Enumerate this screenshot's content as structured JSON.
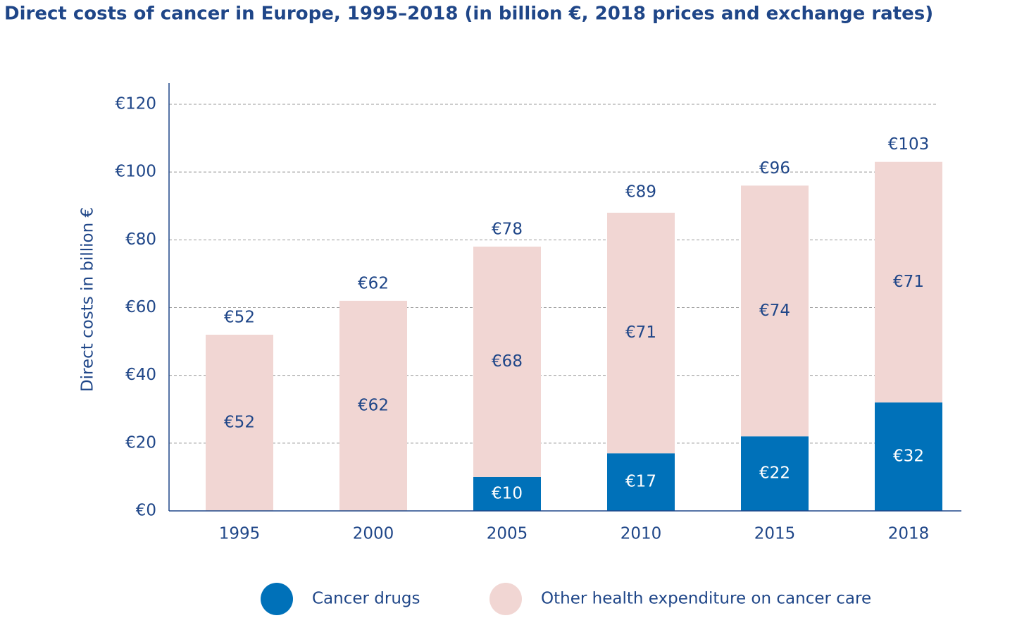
{
  "chart_data": {
    "type": "stacked-bar",
    "title": "Direct costs of cancer in Europe, 1995–2018 (in billion €, 2018 prices and exchange rates)",
    "y_label": "Direct costs in billion €",
    "categories": [
      "1995",
      "2000",
      "2005",
      "2010",
      "2015",
      "2018"
    ],
    "series": [
      {
        "name": "Cancer drugs",
        "color": "#0071b9",
        "label_color": "#ffffff",
        "values": [
          null,
          null,
          10,
          17,
          22,
          32
        ],
        "value_labels": [
          null,
          null,
          "€10",
          "€17",
          "€22",
          "€32"
        ]
      },
      {
        "name": "Other health expenditure on cancer care",
        "color": "#f1d6d3",
        "label_color": "#1f4688",
        "values": [
          52,
          62,
          68,
          71,
          74,
          71
        ],
        "value_labels": [
          "€52",
          "€62",
          "€68",
          "€71",
          "€74",
          "€71"
        ]
      }
    ],
    "totals": [
      52,
      62,
      78,
      89,
      96,
      103
    ],
    "total_labels": [
      "€52",
      "€62",
      "€78",
      "€89",
      "€96",
      "€103"
    ],
    "ylim": [
      0,
      120
    ],
    "yticks": [
      {
        "value": 0,
        "label": "€0"
      },
      {
        "value": 20,
        "label": "€20"
      },
      {
        "value": 40,
        "label": "€40"
      },
      {
        "value": 60,
        "label": "€60"
      },
      {
        "value": 80,
        "label": "€80"
      },
      {
        "value": 100,
        "label": "€100"
      },
      {
        "value": 120,
        "label": "€120"
      }
    ],
    "grid": true
  }
}
